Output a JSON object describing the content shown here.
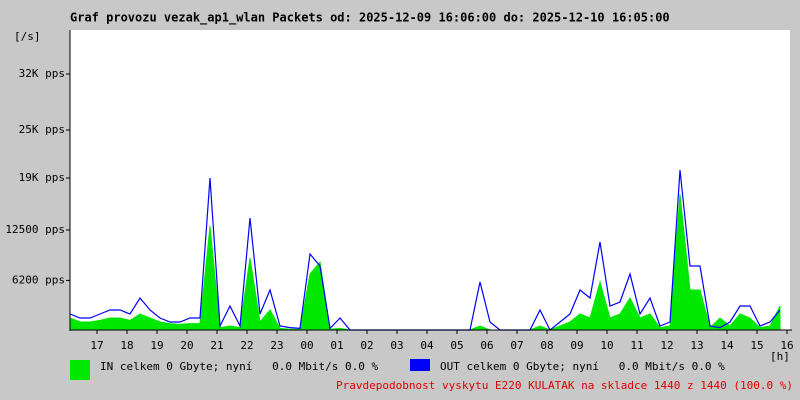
{
  "chart_data": {
    "type": "line",
    "title": "Graf provozu vezak_ap1_wlan Packets od: 2025-12-09 16:06:00 do: 2025-12-10 16:05:00",
    "y_label": "[/s]",
    "x_label": "[h]",
    "annotation": "Pravdepodobnost vyskytu E220 KULATAK na skladce 1440 z 1440 (100.0 %)",
    "x": [
      0,
      20,
      40,
      60,
      80,
      100,
      120,
      140,
      160,
      180,
      200,
      220,
      240,
      260,
      280,
      300,
      320,
      340,
      360,
      380,
      400,
      420,
      440,
      460,
      480,
      500,
      520,
      540,
      560,
      580,
      600,
      620,
      640,
      660,
      680,
      700,
      720,
      740,
      760,
      780,
      800,
      820,
      840,
      860,
      880,
      900,
      920,
      940,
      960,
      980,
      1000,
      1020,
      1040,
      1060,
      1080,
      1100,
      1120,
      1140,
      1160,
      1180,
      1200,
      1220,
      1240,
      1260,
      1280,
      1300,
      1320,
      1340,
      1360,
      1380,
      1400,
      1420
    ],
    "xlim": [
      0,
      1440
    ],
    "xticks": [
      {
        "value": 54,
        "label": "17"
      },
      {
        "value": 114,
        "label": "18"
      },
      {
        "value": 174,
        "label": "19"
      },
      {
        "value": 234,
        "label": "20"
      },
      {
        "value": 294,
        "label": "21"
      },
      {
        "value": 354,
        "label": "22"
      },
      {
        "value": 414,
        "label": "23"
      },
      {
        "value": 474,
        "label": "00"
      },
      {
        "value": 534,
        "label": "01"
      },
      {
        "value": 594,
        "label": "02"
      },
      {
        "value": 654,
        "label": "03"
      },
      {
        "value": 714,
        "label": "04"
      },
      {
        "value": 774,
        "label": "05"
      },
      {
        "value": 834,
        "label": "06"
      },
      {
        "value": 894,
        "label": "07"
      },
      {
        "value": 954,
        "label": "08"
      },
      {
        "value": 1014,
        "label": "09"
      },
      {
        "value": 1074,
        "label": "10"
      },
      {
        "value": 1134,
        "label": "11"
      },
      {
        "value": 1194,
        "label": "12"
      },
      {
        "value": 1254,
        "label": "13"
      },
      {
        "value": 1314,
        "label": "14"
      },
      {
        "value": 1374,
        "label": "15"
      },
      {
        "value": 1434,
        "label": "16"
      }
    ],
    "ylim": [
      0,
      37500
    ],
    "yticks": [
      {
        "value": 6200,
        "label": "6200 pps"
      },
      {
        "value": 12500,
        "label": "12500 pps"
      },
      {
        "value": 19000,
        "label": "19K pps"
      },
      {
        "value": 25000,
        "label": "25K pps"
      },
      {
        "value": 32000,
        "label": "32K pps"
      }
    ],
    "grid": false,
    "series": [
      {
        "name": "IN celkem 0 Gbyte; nyní   0.0 Mbit/s 0.0 %",
        "color": "#00e800",
        "style": "area",
        "values": [
          1500,
          1000,
          1000,
          1200,
          1500,
          1500,
          1200,
          2000,
          1500,
          1000,
          800,
          700,
          800,
          800,
          13000,
          300,
          500,
          300,
          9000,
          1000,
          2500,
          200,
          100,
          100,
          7000,
          8500,
          100,
          200,
          0,
          0,
          0,
          0,
          0,
          0,
          0,
          0,
          0,
          0,
          0,
          0,
          0,
          500,
          0,
          0,
          0,
          0,
          0,
          500,
          0,
          500,
          1000,
          2000,
          1500,
          6000,
          1500,
          2000,
          4000,
          1500,
          2000,
          300,
          500,
          17000,
          5000,
          5000,
          300,
          1500,
          500,
          2000,
          1500,
          300,
          500,
          3000
        ]
      },
      {
        "name": "OUT celkem 0 Gbyte; nyní   0.0 Mbit/s 0.0 %",
        "color": "#0000ff",
        "style": "line",
        "values": [
          2000,
          1500,
          1500,
          2000,
          2500,
          2500,
          2000,
          4000,
          2500,
          1500,
          1000,
          1000,
          1500,
          1500,
          19000,
          500,
          3000,
          500,
          14000,
          2000,
          5000,
          500,
          300,
          200,
          9500,
          8000,
          200,
          1500,
          0,
          0,
          0,
          0,
          0,
          0,
          0,
          0,
          0,
          0,
          0,
          0,
          0,
          6000,
          1000,
          0,
          0,
          0,
          0,
          2500,
          0,
          1000,
          2000,
          5000,
          4000,
          11000,
          3000,
          3500,
          7000,
          2000,
          4000,
          500,
          1000,
          20000,
          8000,
          8000,
          500,
          300,
          1000,
          3000,
          3000,
          500,
          1000,
          2500
        ]
      }
    ]
  }
}
